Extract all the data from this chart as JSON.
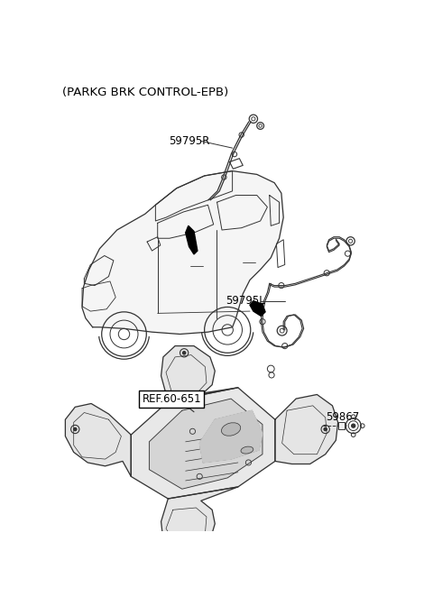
{
  "title": "(PARKG BRK CONTROL-EPB)",
  "label_59795R": "59795R",
  "label_59795L": "59795L",
  "label_ref": "REF.60-651",
  "label_59867": "59867",
  "label_fontsize": 8.5,
  "fig_width": 4.8,
  "fig_height": 6.62,
  "dpi": 100,
  "bg_color": "#ffffff",
  "line_color": "#333333"
}
